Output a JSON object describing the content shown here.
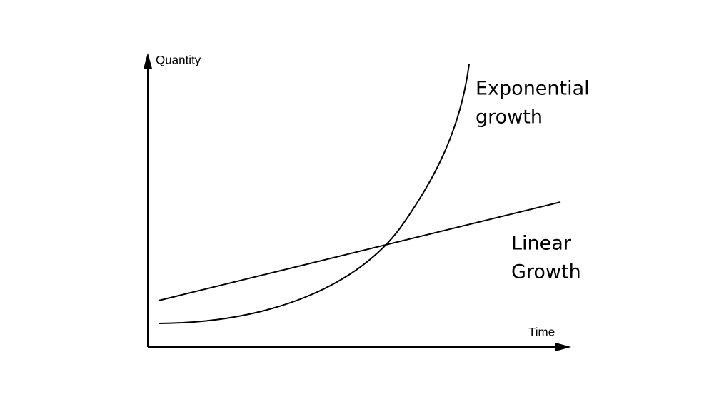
{
  "axes": {
    "y_label": "Quantity",
    "x_label": "Time"
  },
  "curves": [
    {
      "label_lines": [
        "Exponential",
        "growth"
      ]
    },
    {
      "label_lines": [
        "Linear",
        "Growth"
      ]
    }
  ]
}
